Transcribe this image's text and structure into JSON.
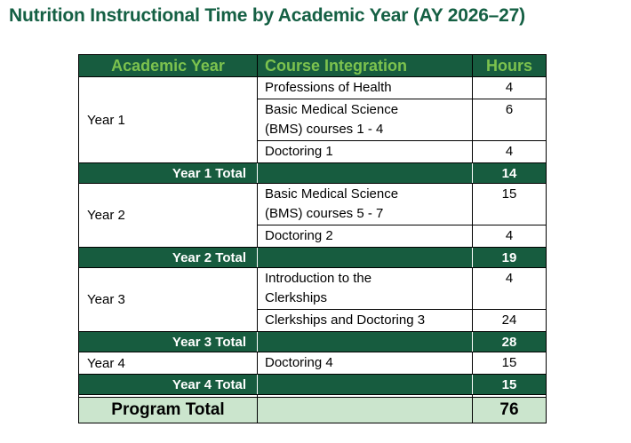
{
  "page_title": "Nutrition Instructional Time by Academic Year (AY 2026–27)",
  "colors": {
    "dark_green": "#175C3F",
    "header_text_green": "#7CC24E",
    "program_row_green": "#CBE5CD",
    "title_green": "#156044"
  },
  "table": {
    "headers": [
      "Academic Year",
      "Course Integration",
      "Hours"
    ],
    "groups": [
      {
        "year": "Year 1",
        "courses": [
          {
            "name": "Professions of Health",
            "hours": "4"
          },
          {
            "name": "Basic Medical Science\n(BMS) courses 1 - 4",
            "hours": "6"
          },
          {
            "name": "Doctoring 1",
            "hours": "4"
          }
        ],
        "total_label": "Year 1 Total",
        "total_hours": "14"
      },
      {
        "year": "Year 2",
        "courses": [
          {
            "name": "Basic Medical Science\n(BMS) courses 5 - 7",
            "hours": "15"
          },
          {
            "name": "Doctoring 2",
            "hours": "4"
          }
        ],
        "total_label": "Year 2 Total",
        "total_hours": "19"
      },
      {
        "year": "Year 3",
        "courses": [
          {
            "name": "Introduction to the\nClerkships",
            "hours": "4"
          },
          {
            "name": "Clerkships and Doctoring 3",
            "hours": "24"
          }
        ],
        "total_label": "Year 3 Total",
        "total_hours": "28"
      },
      {
        "year": "Year 4",
        "courses": [
          {
            "name": "Doctoring 4",
            "hours": "15"
          }
        ],
        "total_label": "Year 4 Total",
        "total_hours": "15"
      }
    ],
    "program_total": {
      "label": "Program Total",
      "hours": "76"
    }
  }
}
